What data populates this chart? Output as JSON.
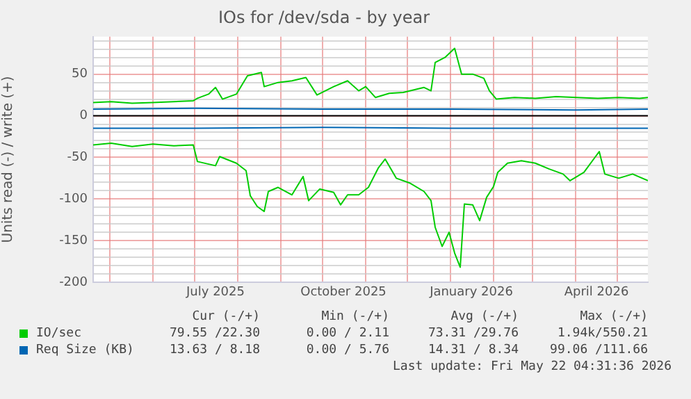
{
  "chart_data": {
    "type": "line",
    "title": "IOs for /dev/sda - by year",
    "ylabel": "Units read (-) / write (+)",
    "xlim": [
      "2025-04-19",
      "2026-05-23"
    ],
    "xticks": [
      {
        "value": "2025-05-01",
        "label": null
      },
      {
        "value": "2025-06-01",
        "label": null
      },
      {
        "value": "2025-07-01",
        "label": null
      },
      {
        "value": "2025-07-16",
        "label": "July 2025"
      },
      {
        "value": "2025-08-01",
        "label": null
      },
      {
        "value": "2025-09-01",
        "label": null
      },
      {
        "value": "2025-10-01",
        "label": null
      },
      {
        "value": "2025-10-16",
        "label": "October 2025"
      },
      {
        "value": "2025-11-01",
        "label": null
      },
      {
        "value": "2025-12-01",
        "label": null
      },
      {
        "value": "2026-01-01",
        "label": null
      },
      {
        "value": "2026-01-16",
        "label": "January 2026"
      },
      {
        "value": "2026-02-01",
        "label": null
      },
      {
        "value": "2026-03-01",
        "label": null
      },
      {
        "value": "2026-04-01",
        "label": null
      },
      {
        "value": "2026-04-16",
        "label": "April 2026"
      },
      {
        "value": "2026-05-01",
        "label": null
      }
    ],
    "ylim": [
      -200,
      95
    ],
    "yticks": [
      -200,
      {
        "value": -190,
        "label": null
      },
      {
        "value": -180,
        "label": null
      },
      {
        "value": -170,
        "label": null
      },
      {
        "value": -160,
        "label": null
      },
      -150,
      {
        "value": -140,
        "label": null
      },
      {
        "value": -130,
        "label": null
      },
      {
        "value": -120,
        "label": null
      },
      {
        "value": -110,
        "label": null
      },
      -100,
      {
        "value": -90,
        "label": null
      },
      {
        "value": -80,
        "label": null
      },
      {
        "value": -70,
        "label": null
      },
      {
        "value": -60,
        "label": null
      },
      -50,
      {
        "value": -40,
        "label": null
      },
      {
        "value": -30,
        "label": null
      },
      {
        "value": -20,
        "label": null
      },
      {
        "value": -10,
        "label": null
      },
      0,
      {
        "value": 10,
        "label": null
      },
      {
        "value": 20,
        "label": null
      },
      {
        "value": 30,
        "label": null
      },
      {
        "value": 40,
        "label": null
      },
      50,
      {
        "value": 60,
        "label": null
      },
      {
        "value": 70,
        "label": null
      },
      {
        "value": 80,
        "label": null
      },
      {
        "value": 90,
        "label": null
      }
    ],
    "grid": true,
    "legend": "bottom",
    "ref_lines": [
      {
        "axis": "y",
        "value": 0,
        "color": "#000000"
      }
    ],
    "series": [
      {
        "name": "IO/sec",
        "color": "#00cc00",
        "x": [
          "2025-04-19",
          "2025-05-02",
          "2025-05-17",
          "2025-06-01",
          "2025-06-16",
          "2025-06-30",
          "2025-07-03",
          "2025-07-11",
          "2025-07-16",
          "2025-07-21",
          "2025-07-31",
          "2025-08-08",
          "2025-08-18",
          "2025-08-20",
          "2025-08-30",
          "2025-09-09",
          "2025-09-19",
          "2025-09-27",
          "2025-10-09",
          "2025-10-19",
          "2025-10-27",
          "2025-11-01",
          "2025-11-08",
          "2025-11-18",
          "2025-11-28",
          "2025-12-13",
          "2025-12-18",
          "2025-12-21",
          "2025-12-28",
          "2026-01-04",
          "2026-01-09",
          "2026-01-17",
          "2026-01-25",
          "2026-01-29",
          "2026-02-03",
          "2026-02-16",
          "2026-03-03",
          "2026-03-18",
          "2026-04-02",
          "2026-04-17",
          "2026-05-02",
          "2026-05-17",
          "2026-05-23"
        ],
        "values": [
          16,
          17,
          15,
          16,
          17,
          18,
          21,
          26,
          34,
          20,
          26,
          48,
          52,
          35,
          40,
          42,
          46,
          25,
          35,
          42,
          30,
          35,
          22,
          27,
          28,
          34,
          30,
          64,
          70,
          81,
          50,
          50,
          45,
          30,
          20,
          22,
          21,
          23,
          22,
          21,
          22,
          21,
          22
        ]
      },
      {
        "color": "#00cc00",
        "x": [
          "2025-04-19",
          "2025-05-02",
          "2025-05-17",
          "2025-06-01",
          "2025-06-16",
          "2025-06-30",
          "2025-07-03",
          "2025-07-16",
          "2025-07-19",
          "2025-07-31",
          "2025-08-07",
          "2025-08-10",
          "2025-08-15",
          "2025-08-20",
          "2025-08-23",
          "2025-08-30",
          "2025-09-09",
          "2025-09-17",
          "2025-09-21",
          "2025-09-29",
          "2025-10-09",
          "2025-10-14",
          "2025-10-19",
          "2025-10-27",
          "2025-11-03",
          "2025-11-10",
          "2025-11-15",
          "2025-11-23",
          "2025-12-03",
          "2025-12-13",
          "2025-12-18",
          "2025-12-21",
          "2025-12-26",
          "2025-12-31",
          "2026-01-04",
          "2026-01-08",
          "2026-01-11",
          "2026-01-17",
          "2026-01-22",
          "2026-01-27",
          "2026-02-01",
          "2026-02-04",
          "2026-02-11",
          "2026-02-21",
          "2026-03-03",
          "2026-03-13",
          "2026-03-23",
          "2026-03-28",
          "2026-04-07",
          "2026-04-18",
          "2026-04-22",
          "2026-05-02",
          "2026-05-12",
          "2026-05-23"
        ],
        "values": [
          -35,
          -33,
          -37,
          -34,
          -36,
          -35,
          -55,
          -60,
          -49,
          -57,
          -66,
          -96,
          -109,
          -115,
          -91,
          -86,
          -95,
          -73,
          -102,
          -88,
          -92,
          -107,
          -95,
          -95,
          -86,
          -63,
          -52,
          -75,
          -81,
          -91,
          -102,
          -134,
          -157,
          -140,
          -165,
          -182,
          -106,
          -107,
          -126,
          -98,
          -85,
          -68,
          -57,
          -54,
          -57,
          -64,
          -70,
          -78,
          -68,
          -43,
          -70,
          -75,
          -70,
          -78
        ]
      },
      {
        "name": "Req Size (KB)",
        "color": "#0066b3",
        "x": [
          "2025-04-19",
          "2025-07-01",
          "2025-10-01",
          "2026-01-01",
          "2026-04-01",
          "2026-05-23"
        ],
        "values": [
          8,
          9,
          8,
          8,
          7,
          8
        ]
      },
      {
        "color": "#0066b3",
        "x": [
          "2025-04-19",
          "2025-07-01",
          "2025-10-01",
          "2026-01-01",
          "2026-04-01",
          "2026-05-23"
        ],
        "values": [
          -15,
          -15,
          -14,
          -15,
          -15,
          -15
        ]
      }
    ],
    "annotations": [
      "Cur (-/+)",
      "Min (-/+)",
      "Avg (-/+)",
      "Max (-/+)",
      "79.55 /22.30",
      "0.00 / 2.11",
      "73.31 /29.76",
      "1.94k/550.21",
      "13.63 / 8.18",
      "0.00 / 5.76",
      "14.31 / 8.34",
      "99.06 /111.66",
      "Last update: Fri May 22 04:31:36 2026"
    ]
  }
}
